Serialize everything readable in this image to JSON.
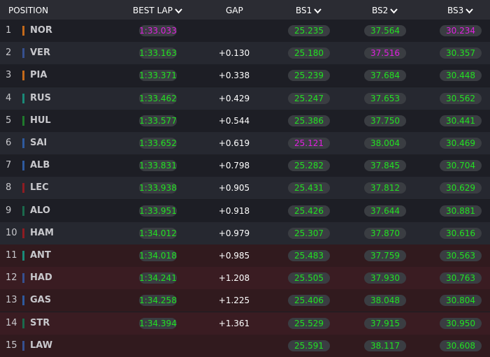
{
  "header": {
    "position": "POSITION",
    "best_lap": "BEST LAP",
    "gap": "GAP",
    "bs1": "BS1",
    "bs2": "BS2",
    "bs3": "BS3"
  },
  "colors": {
    "personal": "#22e022",
    "overall": "#e020e0"
  },
  "table": {
    "rows": [
      {
        "position": 1,
        "driver": "NOR",
        "team_color": "#c46a1a",
        "best_lap": "1:33.033",
        "gap": null,
        "bs1": "25.235",
        "bs2": "37.564",
        "bs3": "30.234",
        "fastest": [
          "best_lap",
          "bs3"
        ]
      },
      {
        "position": 2,
        "driver": "VER",
        "team_color": "#36508f",
        "best_lap": "1:33.163",
        "gap": "+0.130",
        "bs1": "25.180",
        "bs2": "37.516",
        "bs3": "30.357",
        "fastest": [
          "bs2"
        ]
      },
      {
        "position": 3,
        "driver": "PIA",
        "team_color": "#c46a1a",
        "best_lap": "1:33.371",
        "gap": "+0.338",
        "bs1": "25.239",
        "bs2": "37.684",
        "bs3": "30.448",
        "fastest": []
      },
      {
        "position": 4,
        "driver": "RUS",
        "team_color": "#1a8a78",
        "best_lap": "1:33.462",
        "gap": "+0.429",
        "bs1": "25.247",
        "bs2": "37.653",
        "bs3": "30.562",
        "fastest": []
      },
      {
        "position": 5,
        "driver": "HUL",
        "team_color": "#1f7a2c",
        "best_lap": "1:33.577",
        "gap": "+0.544",
        "bs1": "25.386",
        "bs2": "37.750",
        "bs3": "30.441",
        "fastest": []
      },
      {
        "position": 6,
        "driver": "SAI",
        "team_color": "#2e5a9e",
        "best_lap": "1:33.652",
        "gap": "+0.619",
        "bs1": "25.121",
        "bs2": "38.004",
        "bs3": "30.469",
        "fastest": [
          "bs1"
        ]
      },
      {
        "position": 7,
        "driver": "ALB",
        "team_color": "#2e5a9e",
        "best_lap": "1:33.831",
        "gap": "+0.798",
        "bs1": "25.282",
        "bs2": "37.845",
        "bs3": "30.704",
        "fastest": []
      },
      {
        "position": 8,
        "driver": "LEC",
        "team_color": "#8e1c22",
        "best_lap": "1:33.938",
        "gap": "+0.905",
        "bs1": "25.431",
        "bs2": "37.812",
        "bs3": "30.629",
        "fastest": []
      },
      {
        "position": 9,
        "driver": "ALO",
        "team_color": "#1a6a4c",
        "best_lap": "1:33.951",
        "gap": "+0.918",
        "bs1": "25.426",
        "bs2": "37.644",
        "bs3": "30.881",
        "fastest": []
      },
      {
        "position": 10,
        "driver": "HAM",
        "team_color": "#8e1c22",
        "best_lap": "1:34.012",
        "gap": "+0.979",
        "bs1": "25.307",
        "bs2": "37.870",
        "bs3": "30.616",
        "fastest": []
      },
      {
        "position": 11,
        "driver": "ANT",
        "team_color": "#1a8a78",
        "best_lap": "1:34.018",
        "gap": "+0.985",
        "bs1": "25.483",
        "bs2": "37.759",
        "bs3": "30.563",
        "fastest": []
      },
      {
        "position": 12,
        "driver": "HAD",
        "team_color": "#36508f",
        "best_lap": "1:34.241",
        "gap": "+1.208",
        "bs1": "25.505",
        "bs2": "37.930",
        "bs3": "30.763",
        "fastest": []
      },
      {
        "position": 13,
        "driver": "GAS",
        "team_color": "#2e5a9e",
        "best_lap": "1:34.258",
        "gap": "+1.225",
        "bs1": "25.406",
        "bs2": "38.048",
        "bs3": "30.804",
        "fastest": []
      },
      {
        "position": 14,
        "driver": "STR",
        "team_color": "#1a6a4c",
        "best_lap": "1:34.394",
        "gap": "+1.361",
        "bs1": "25.529",
        "bs2": "37.915",
        "bs3": "30.950",
        "fastest": []
      },
      {
        "position": 15,
        "driver": "LAW",
        "team_color": "#36508f",
        "best_lap": null,
        "gap": null,
        "bs1": "25.591",
        "bs2": "38.117",
        "bs3": "30.608",
        "fastest": []
      }
    ]
  }
}
